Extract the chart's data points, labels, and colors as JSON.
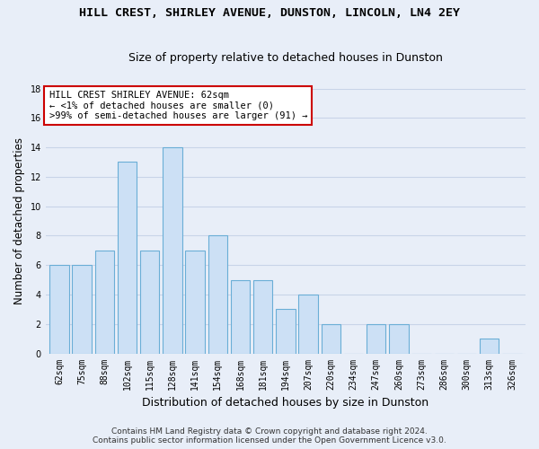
{
  "title": "HILL CREST, SHIRLEY AVENUE, DUNSTON, LINCOLN, LN4 2EY",
  "subtitle": "Size of property relative to detached houses in Dunston",
  "xlabel": "Distribution of detached houses by size in Dunston",
  "ylabel": "Number of detached properties",
  "categories": [
    "62sqm",
    "75sqm",
    "88sqm",
    "102sqm",
    "115sqm",
    "128sqm",
    "141sqm",
    "154sqm",
    "168sqm",
    "181sqm",
    "194sqm",
    "207sqm",
    "220sqm",
    "234sqm",
    "247sqm",
    "260sqm",
    "273sqm",
    "286sqm",
    "300sqm",
    "313sqm",
    "326sqm"
  ],
  "values": [
    6,
    6,
    7,
    13,
    7,
    14,
    7,
    8,
    5,
    5,
    3,
    4,
    2,
    0,
    2,
    2,
    0,
    0,
    0,
    1,
    0
  ],
  "bar_color": "#cce0f5",
  "bar_edge_color": "#6aaed6",
  "annotation_line1": "HILL CREST SHIRLEY AVENUE: 62sqm",
  "annotation_line2": "← <1% of detached houses are smaller (0)",
  "annotation_line3": ">99% of semi-detached houses are larger (91) →",
  "annotation_box_facecolor": "#ffffff",
  "annotation_box_edgecolor": "#cc0000",
  "ylim_max": 18,
  "background_color": "#e8eef8",
  "plot_bg_color": "#e8eef8",
  "grid_color": "#c8d4e8",
  "footer_line1": "Contains HM Land Registry data © Crown copyright and database right 2024.",
  "footer_line2": "Contains public sector information licensed under the Open Government Licence v3.0.",
  "title_fontsize": 9.5,
  "subtitle_fontsize": 9,
  "ylabel_fontsize": 8.5,
  "xlabel_fontsize": 9,
  "tick_fontsize": 7,
  "annotation_fontsize": 7.5,
  "footer_fontsize": 6.5
}
